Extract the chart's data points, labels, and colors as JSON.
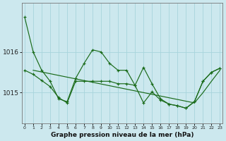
{
  "title": "Graphe pression niveau de la mer (hPa)",
  "background_color": "#cce8ee",
  "grid_color": "#a8d4dc",
  "line_color": "#1a6b1a",
  "x_values": [
    0,
    1,
    2,
    3,
    4,
    5,
    6,
    7,
    8,
    9,
    10,
    11,
    12,
    13,
    14,
    15,
    16,
    17,
    18,
    19,
    20,
    21,
    22,
    23
  ],
  "x_labels": [
    "0",
    "1",
    "2",
    "3",
    "4",
    "5",
    "6",
    "7",
    "8",
    "9",
    "10",
    "11",
    "12",
    "13",
    "14",
    "15",
    "16",
    "17",
    "18",
    "19",
    "20",
    "21",
    "22",
    "23"
  ],
  "series1": [
    1016.85,
    1016.0,
    1015.55,
    1015.28,
    1014.85,
    1014.78,
    1015.35,
    1015.72,
    1016.05,
    1016.0,
    1015.72,
    1015.55,
    1015.55,
    1015.18,
    1015.62,
    1015.22,
    1014.85,
    1014.72,
    1014.68,
    1014.62,
    1014.78,
    1015.28,
    1015.5,
    1015.6
  ],
  "series2": [
    1015.55,
    1015.45,
    1015.3,
    1015.15,
    1014.88,
    1014.75,
    1015.28,
    1015.28,
    1015.28,
    1015.28,
    1015.28,
    1015.22,
    1015.22,
    1015.18,
    1014.75,
    1015.02,
    1014.82,
    1014.72,
    1014.68,
    1014.62,
    1014.78,
    1015.28,
    1015.5,
    1015.6
  ],
  "series3_x": [
    1,
    23
  ],
  "series3_y": [
    1015.55,
    1015.58
  ],
  "series3_inner_x": [
    1,
    7,
    10,
    20,
    23
  ],
  "series3_inner_y": [
    1015.55,
    1015.28,
    1015.28,
    1014.78,
    1015.58
  ],
  "yticks": [
    1015,
    1016
  ],
  "ylim": [
    1014.25,
    1017.2
  ],
  "xlim": [
    -0.3,
    23.3
  ]
}
